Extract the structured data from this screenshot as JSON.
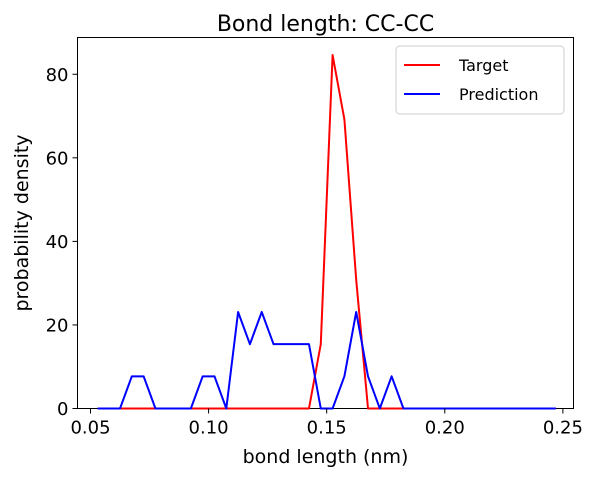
{
  "chart_data": {
    "type": "line",
    "title": "Bond length: CC-CC",
    "xlabel": "bond length (nm)",
    "ylabel": "probability density",
    "xlim": [
      0.0445,
      0.2545
    ],
    "ylim": [
      0,
      88.8
    ],
    "x_ticks": [
      0.05,
      0.1,
      0.15,
      0.2,
      0.25
    ],
    "x_tick_labels": [
      "0.05",
      "0.10",
      "0.15",
      "0.20",
      "0.25"
    ],
    "y_ticks": [
      0,
      20,
      40,
      60,
      80
    ],
    "y_tick_labels": [
      "0",
      "20",
      "40",
      "60",
      "80"
    ],
    "grid": false,
    "legend_position": "top-right",
    "series": [
      {
        "name": "Target",
        "color": "#ff0000",
        "x": [
          0.053,
          0.0575,
          0.0625,
          0.0675,
          0.0725,
          0.0775,
          0.0825,
          0.0875,
          0.0925,
          0.0975,
          0.1025,
          0.1075,
          0.1125,
          0.1175,
          0.1225,
          0.1275,
          0.1325,
          0.1375,
          0.1425,
          0.1475,
          0.1525,
          0.1575,
          0.1625,
          0.1675,
          0.1725,
          0.1775,
          0.1825,
          0.1875,
          0.1925,
          0.1975,
          0.2025,
          0.2075,
          0.2125,
          0.2175,
          0.2225,
          0.2275,
          0.2325,
          0.2375,
          0.2425,
          0.247
        ],
        "y": [
          0,
          0,
          0,
          0,
          0,
          0,
          0,
          0,
          0,
          0,
          0,
          0,
          0,
          0,
          0,
          0,
          0,
          0,
          0,
          15.4,
          84.6,
          69.2,
          30.8,
          0,
          0,
          0,
          0,
          0,
          0,
          0,
          0,
          0,
          0,
          0,
          0,
          0,
          0,
          0,
          0,
          0
        ]
      },
      {
        "name": "Prediction",
        "color": "#0000ff",
        "x": [
          0.053,
          0.0575,
          0.0625,
          0.0675,
          0.0725,
          0.0775,
          0.0825,
          0.0875,
          0.0925,
          0.0975,
          0.1025,
          0.1075,
          0.1125,
          0.1175,
          0.1225,
          0.1275,
          0.1325,
          0.1375,
          0.1425,
          0.1475,
          0.1525,
          0.1575,
          0.1625,
          0.1675,
          0.1725,
          0.1775,
          0.1825,
          0.1875,
          0.1925,
          0.1975,
          0.2025,
          0.2075,
          0.2125,
          0.2175,
          0.2225,
          0.2275,
          0.2325,
          0.2375,
          0.2425,
          0.247
        ],
        "y": [
          0,
          0,
          0,
          7.7,
          7.7,
          0,
          0,
          0,
          0,
          7.7,
          7.7,
          0,
          23.1,
          15.4,
          23.1,
          15.4,
          15.4,
          15.4,
          15.4,
          0,
          0,
          7.7,
          23.1,
          7.7,
          0,
          7.7,
          0,
          0,
          0,
          0,
          0,
          0,
          0,
          0,
          0,
          0,
          0,
          0,
          0,
          0
        ]
      }
    ]
  }
}
